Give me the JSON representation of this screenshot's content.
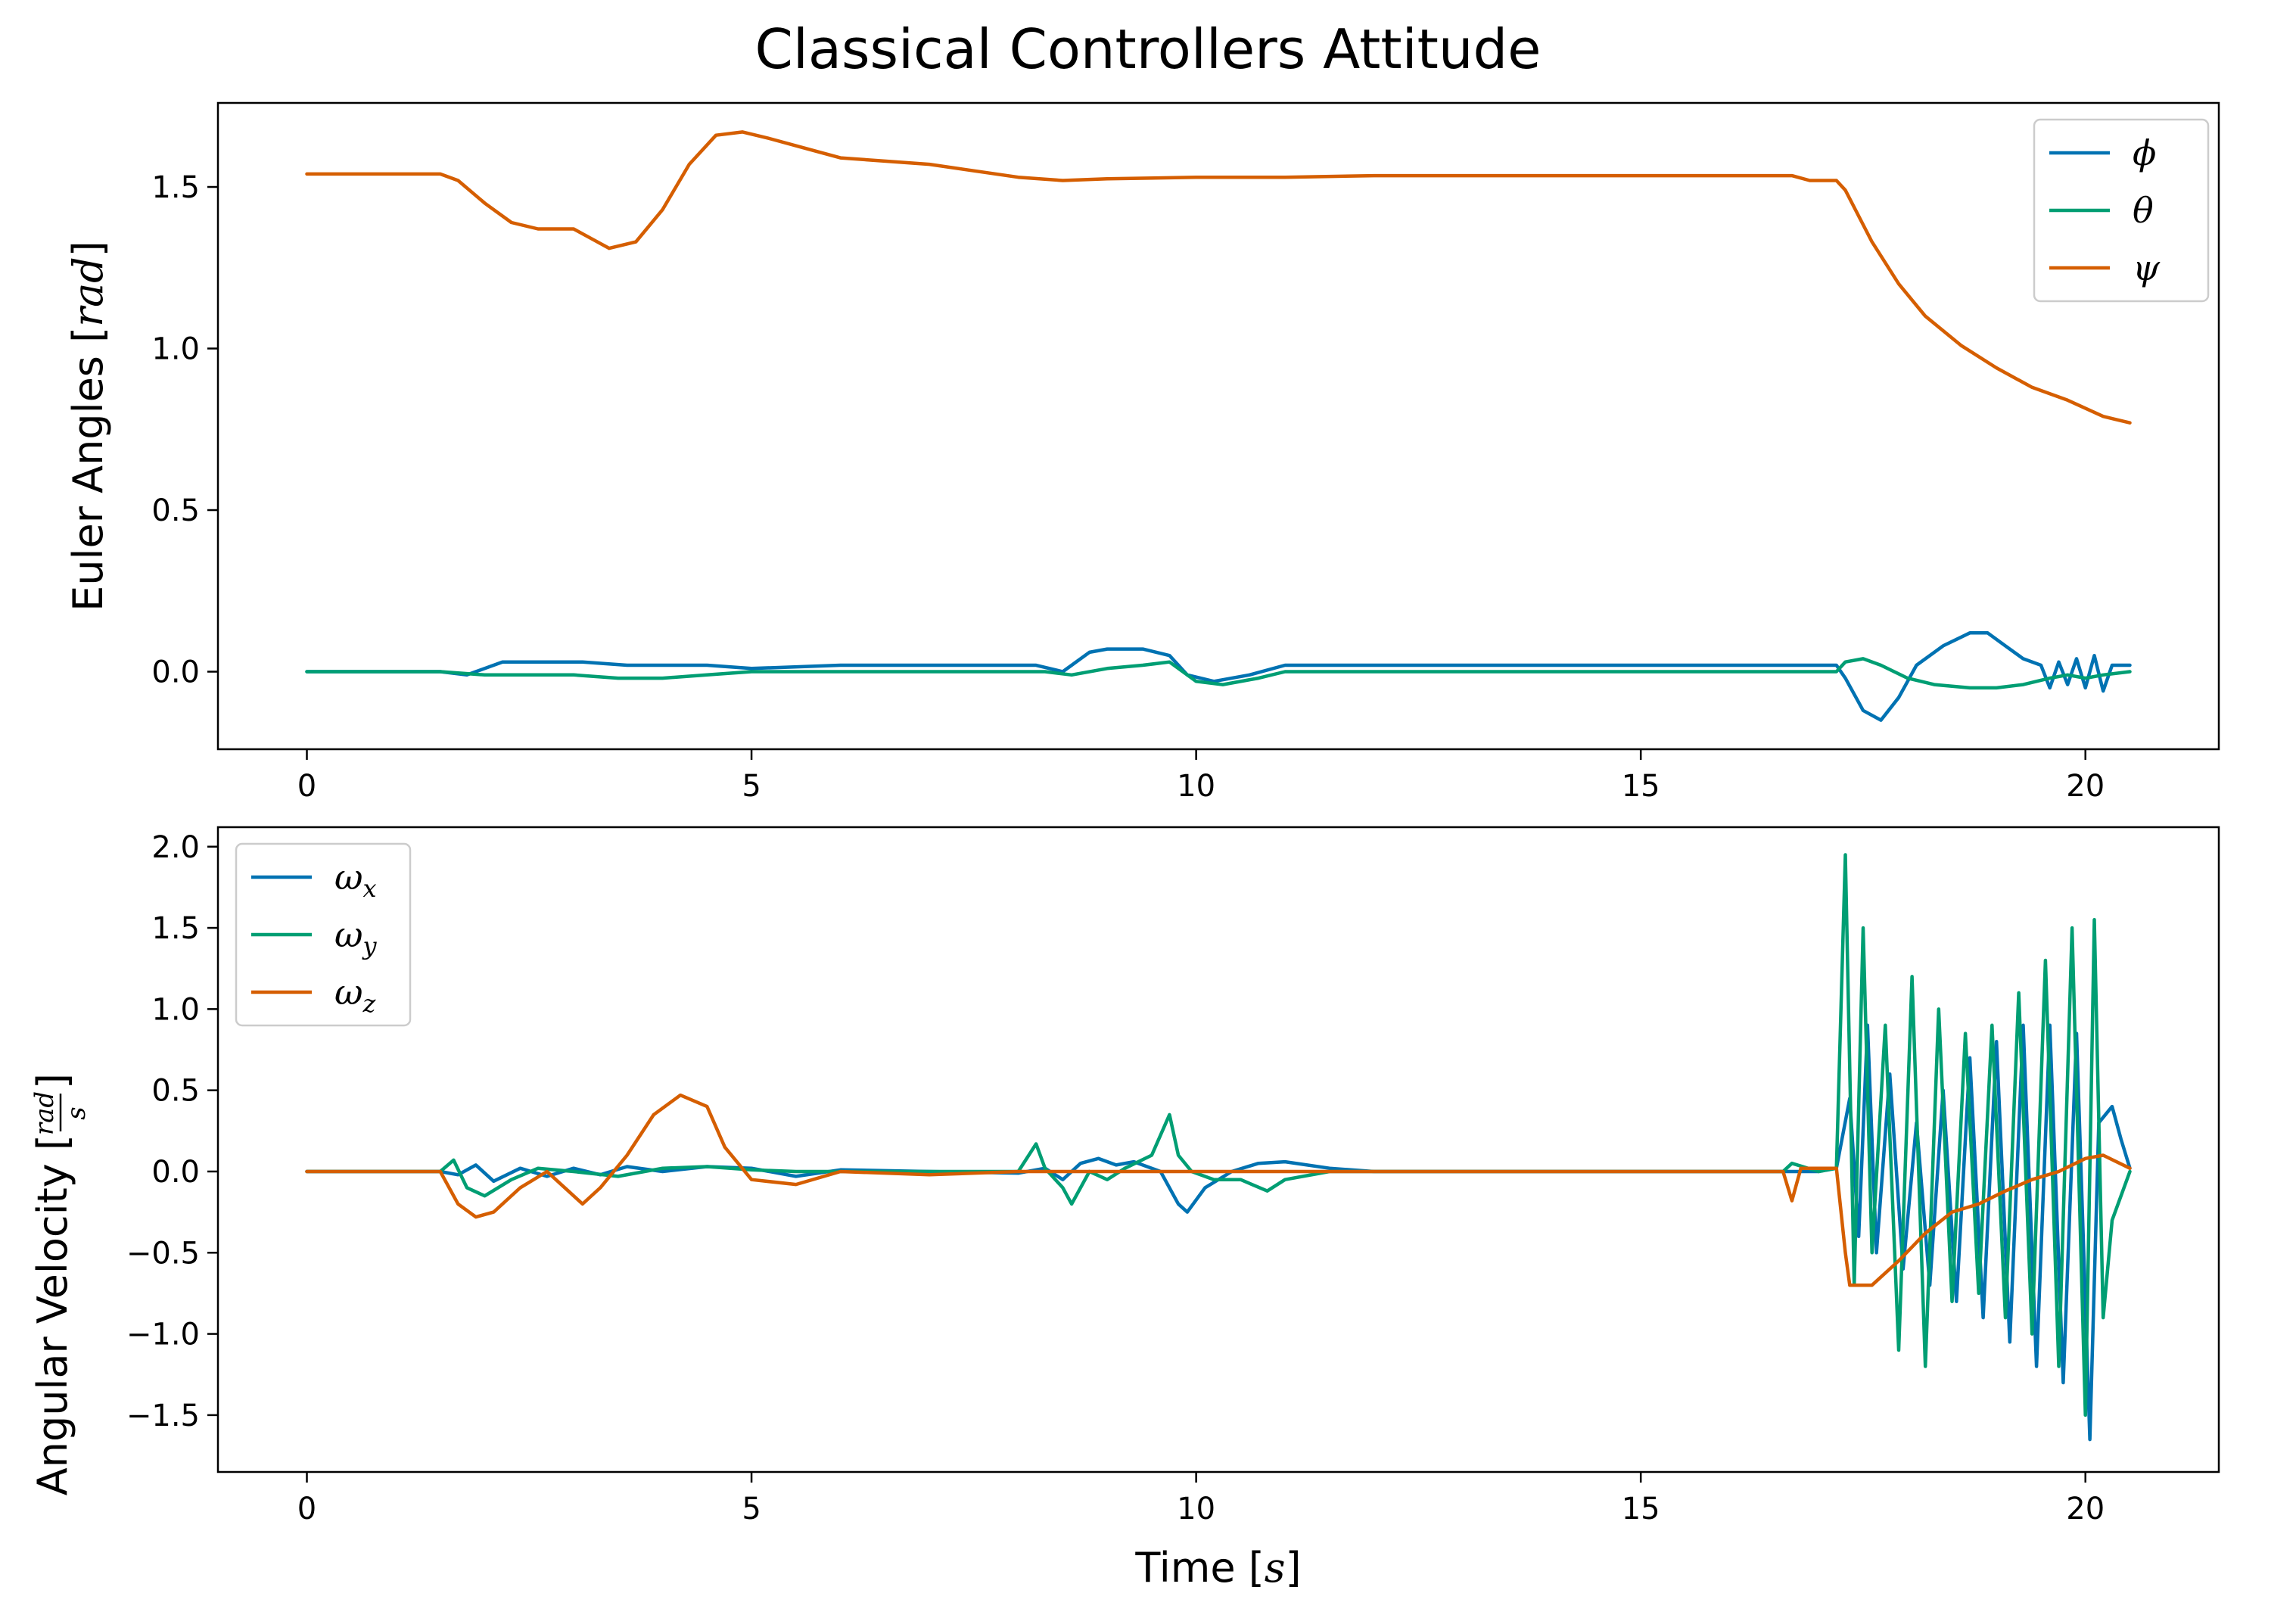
{
  "figure": {
    "title": "Classical Controllers Attitude"
  },
  "colors": {
    "blue": "#0072B2",
    "green": "#009E73",
    "orange": "#D55E00"
  },
  "chart_data": [
    {
      "type": "line",
      "title": "",
      "xlabel": "",
      "ylabel": "Euler Angles [rad]",
      "ylabel_parts": {
        "main": "Euler Angles [",
        "italic": "rad",
        "end": "]"
      },
      "xlim": [
        -1,
        21.5
      ],
      "ylim": [
        -0.24,
        1.76
      ],
      "xticks": [
        0,
        5,
        10,
        15,
        20
      ],
      "xtick_labels": [
        "0",
        "5",
        "10",
        "15",
        "20"
      ],
      "yticks": [
        0.0,
        0.5,
        1.0,
        1.5
      ],
      "ytick_labels": [
        "0.0",
        "0.5",
        "1.0",
        "1.5"
      ],
      "legend_position": "top-right",
      "grid": false,
      "series": [
        {
          "name": "ϕ",
          "color": "#0072B2",
          "x": [
            0,
            1.5,
            1.8,
            2.2,
            2.6,
            3.1,
            3.6,
            4,
            4.5,
            5,
            6,
            7,
            8,
            8.2,
            8.5,
            8.8,
            9,
            9.4,
            9.7,
            9.9,
            10.2,
            10.6,
            11,
            12,
            13,
            14,
            15,
            16,
            16.5,
            17,
            17.2,
            17.3,
            17.5,
            17.7,
            17.9,
            18.1,
            18.4,
            18.7,
            18.9,
            19.1,
            19.3,
            19.5,
            19.6,
            19.7,
            19.8,
            19.9,
            20,
            20.1,
            20.2,
            20.3,
            20.5
          ],
          "y": [
            0,
            0,
            -0.01,
            0.03,
            0.03,
            0.03,
            0.02,
            0.02,
            0.02,
            0.01,
            0.02,
            0.02,
            0.02,
            0.02,
            0,
            0.06,
            0.07,
            0.07,
            0.05,
            -0.01,
            -0.03,
            -0.01,
            0.02,
            0.02,
            0.02,
            0.02,
            0.02,
            0.02,
            0.02,
            0.02,
            0.02,
            -0.02,
            -0.12,
            -0.15,
            -0.08,
            0.02,
            0.08,
            0.12,
            0.12,
            0.08,
            0.04,
            0.02,
            -0.05,
            0.03,
            -0.04,
            0.04,
            -0.05,
            0.05,
            -0.06,
            0.02,
            0.02
          ]
        },
        {
          "name": "θ",
          "color": "#009E73",
          "x": [
            0,
            1.5,
            2,
            2.5,
            3,
            3.5,
            4,
            4.5,
            5,
            6,
            7,
            8,
            8.3,
            8.6,
            9,
            9.4,
            9.7,
            10,
            10.3,
            10.7,
            11,
            12,
            13,
            14,
            15,
            16,
            17,
            17.2,
            17.3,
            17.5,
            17.7,
            18,
            18.3,
            18.7,
            19,
            19.3,
            19.6,
            19.8,
            20,
            20.2,
            20.5
          ],
          "y": [
            0,
            0,
            -0.01,
            -0.01,
            -0.01,
            -0.02,
            -0.02,
            -0.01,
            0,
            0,
            0,
            0,
            0,
            -0.01,
            0.01,
            0.02,
            0.03,
            -0.03,
            -0.04,
            -0.02,
            0,
            0,
            0,
            0,
            0,
            0,
            0,
            0,
            0.03,
            0.04,
            0.02,
            -0.02,
            -0.04,
            -0.05,
            -0.05,
            -0.04,
            -0.02,
            -0.01,
            -0.02,
            -0.01,
            0
          ]
        },
        {
          "name": "ψ",
          "color": "#D55E00",
          "x": [
            0,
            1.5,
            1.7,
            2,
            2.3,
            2.6,
            3,
            3.2,
            3.4,
            3.7,
            4,
            4.3,
            4.6,
            4.9,
            5.2,
            5.6,
            6,
            6.5,
            7,
            7.5,
            8,
            8.5,
            9,
            10,
            11,
            12,
            13,
            14,
            15,
            16,
            16.7,
            16.9,
            17.2,
            17.3,
            17.6,
            17.9,
            18.2,
            18.6,
            19,
            19.4,
            19.8,
            20.2,
            20.5
          ],
          "y": [
            1.54,
            1.54,
            1.52,
            1.45,
            1.39,
            1.37,
            1.37,
            1.34,
            1.31,
            1.33,
            1.43,
            1.57,
            1.66,
            1.67,
            1.65,
            1.62,
            1.59,
            1.58,
            1.57,
            1.55,
            1.53,
            1.52,
            1.525,
            1.53,
            1.53,
            1.535,
            1.535,
            1.535,
            1.535,
            1.535,
            1.535,
            1.52,
            1.52,
            1.49,
            1.33,
            1.2,
            1.1,
            1.01,
            0.94,
            0.88,
            0.84,
            0.79,
            0.77
          ]
        }
      ]
    },
    {
      "type": "line",
      "title": "",
      "xlabel": "Time [s]",
      "xlabel_parts": {
        "main": "Time [",
        "italic": "s",
        "end": "]"
      },
      "ylabel": "Angular Velocity [rad/s]",
      "ylabel_parts": {
        "main": "Angular Velocity [",
        "num": "rad",
        "den": "s",
        "end": "]"
      },
      "xlim": [
        -1,
        21.5
      ],
      "ylim": [
        -1.85,
        2.12
      ],
      "xticks": [
        0,
        5,
        10,
        15,
        20
      ],
      "xtick_labels": [
        "0",
        "5",
        "10",
        "15",
        "20"
      ],
      "yticks": [
        -1.5,
        -1.0,
        -0.5,
        0.0,
        0.5,
        1.0,
        1.5,
        2.0
      ],
      "ytick_labels": [
        "−1.5",
        "−1.0",
        "−0.5",
        "0.0",
        "0.5",
        "1.0",
        "1.5",
        "2.0"
      ],
      "legend_position": "top-left",
      "grid": false,
      "series": [
        {
          "name": "ω",
          "subscript": "x",
          "color": "#0072B2",
          "x": [
            0,
            1.5,
            1.7,
            1.9,
            2.1,
            2.4,
            2.7,
            3,
            3.3,
            3.6,
            4,
            4.5,
            5,
            5.5,
            6,
            7,
            8,
            8.3,
            8.5,
            8.7,
            8.9,
            9.1,
            9.3,
            9.6,
            9.8,
            9.9,
            10.1,
            10.4,
            10.7,
            11,
            11.5,
            12,
            13,
            14,
            15,
            16,
            17,
            17.2,
            17.35,
            17.45,
            17.55,
            17.65,
            17.8,
            17.95,
            18.1,
            18.25,
            18.4,
            18.55,
            18.7,
            18.85,
            19,
            19.15,
            19.3,
            19.45,
            19.6,
            19.75,
            19.9,
            20.05,
            20.15,
            20.3,
            20.4,
            20.5
          ],
          "y": [
            0,
            0,
            -0.02,
            0.04,
            -0.06,
            0.02,
            -0.03,
            0.02,
            -0.02,
            0.03,
            0,
            0.03,
            0.02,
            -0.03,
            0.01,
            0,
            -0.01,
            0.02,
            -0.05,
            0.05,
            0.08,
            0.04,
            0.06,
            0,
            -0.2,
            -0.25,
            -0.1,
            0,
            0.05,
            0.06,
            0.02,
            0,
            0,
            0,
            0,
            0,
            0,
            0.02,
            0.45,
            -0.4,
            0.9,
            -0.5,
            0.6,
            -0.6,
            0.3,
            -0.7,
            0.5,
            -0.8,
            0.7,
            -0.9,
            0.8,
            -1.05,
            0.9,
            -1.2,
            0.9,
            -1.3,
            0.85,
            -1.65,
            0.3,
            0.4,
            0.2,
            0.02
          ]
        },
        {
          "name": "ω",
          "subscript": "y",
          "color": "#009E73",
          "x": [
            0,
            1.5,
            1.65,
            1.8,
            2,
            2.3,
            2.6,
            3,
            3.5,
            4,
            4.5,
            5,
            5.5,
            6,
            7,
            8,
            8.2,
            8.3,
            8.5,
            8.6,
            8.8,
            9,
            9.2,
            9.5,
            9.7,
            9.8,
            9.95,
            10.2,
            10.5,
            10.8,
            11,
            11.5,
            12,
            13,
            14,
            15,
            16,
            16.6,
            16.7,
            17,
            17.2,
            17.3,
            17.4,
            17.5,
            17.6,
            17.75,
            17.9,
            18.05,
            18.2,
            18.35,
            18.5,
            18.65,
            18.8,
            18.95,
            19.1,
            19.25,
            19.4,
            19.55,
            19.7,
            19.85,
            20,
            20.1,
            20.2,
            20.3,
            20.5
          ],
          "y": [
            0,
            0,
            0.07,
            -0.1,
            -0.15,
            -0.05,
            0.02,
            0,
            -0.03,
            0.02,
            0.03,
            0.01,
            0,
            0,
            0,
            0,
            0.17,
            0.02,
            -0.1,
            -0.2,
            0,
            -0.05,
            0.02,
            0.1,
            0.35,
            0.1,
            0,
            -0.05,
            -0.05,
            -0.12,
            -0.05,
            0,
            0,
            0,
            0,
            0,
            0,
            0,
            0.05,
            0,
            0.02,
            1.95,
            -0.7,
            1.5,
            -0.5,
            0.9,
            -1.1,
            1.2,
            -1.2,
            1.0,
            -0.8,
            0.85,
            -0.75,
            0.9,
            -0.9,
            1.1,
            -1.0,
            1.3,
            -1.2,
            1.5,
            -1.5,
            1.55,
            -0.9,
            -0.3,
            0
          ]
        },
        {
          "name": "ω",
          "subscript": "z",
          "color": "#D55E00",
          "x": [
            0,
            1.5,
            1.7,
            1.9,
            2.1,
            2.4,
            2.7,
            2.9,
            3.1,
            3.3,
            3.6,
            3.9,
            4.2,
            4.5,
            4.7,
            5,
            5.5,
            6,
            7,
            8,
            9,
            10,
            11,
            12,
            13,
            14,
            15,
            16,
            16.6,
            16.7,
            16.8,
            17,
            17.2,
            17.3,
            17.35,
            17.6,
            17.9,
            18.2,
            18.5,
            18.8,
            19.1,
            19.4,
            19.7,
            20,
            20.2,
            20.5
          ],
          "y": [
            0,
            0,
            -0.2,
            -0.28,
            -0.25,
            -0.1,
            0,
            -0.1,
            -0.2,
            -0.1,
            0.1,
            0.35,
            0.47,
            0.4,
            0.15,
            -0.05,
            -0.08,
            0,
            -0.02,
            0,
            0,
            0,
            0,
            0,
            0,
            0,
            0,
            0,
            0,
            -0.18,
            0.02,
            0.02,
            0.02,
            -0.5,
            -0.7,
            -0.7,
            -0.55,
            -0.38,
            -0.25,
            -0.2,
            -0.12,
            -0.05,
            0.0,
            0.08,
            0.1,
            0.02
          ]
        }
      ]
    }
  ]
}
